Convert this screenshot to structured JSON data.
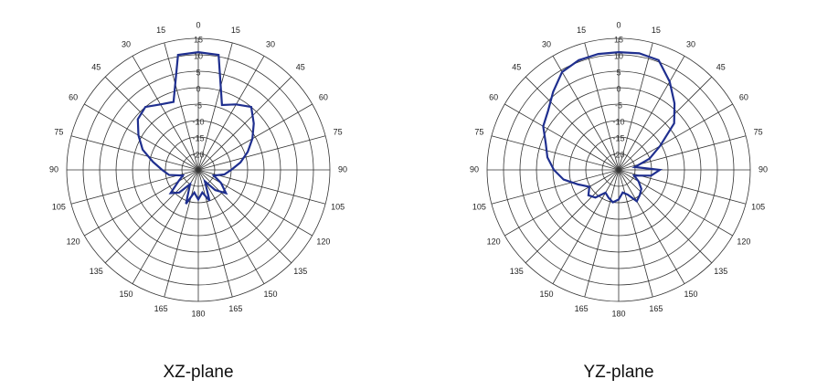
{
  "chart_data": [
    {
      "type": "polar",
      "title": "XZ-plane",
      "color": "#1f2f8f",
      "rlim": [
        -25,
        15
      ],
      "rticks": [
        -20,
        -15,
        -10,
        -5,
        0,
        5,
        10,
        15
      ],
      "thetaticks": [
        0,
        15,
        30,
        45,
        60,
        75,
        90,
        105,
        120,
        135,
        150,
        165,
        180,
        {
          "value": -15,
          "label": "15"
        },
        {
          "value": -30,
          "label": "30"
        },
        {
          "value": -45,
          "label": "45"
        },
        {
          "value": -60,
          "label": "60"
        },
        {
          "value": -75,
          "label": "75"
        },
        {
          "value": -90,
          "label": "90"
        },
        {
          "value": -105,
          "label": "105"
        },
        {
          "value": -120,
          "label": "120"
        },
        {
          "value": -135,
          "label": "135"
        },
        {
          "value": -150,
          "label": "150"
        },
        {
          "value": -165,
          "label": "165"
        }
      ],
      "theta": [
        -180,
        -170,
        -160,
        -150,
        -140,
        -130,
        -120,
        -110,
        -100,
        -90,
        -80,
        -70,
        -60,
        -50,
        -40,
        -30,
        -20,
        -10,
        0,
        10,
        20,
        30,
        40,
        50,
        60,
        70,
        80,
        90,
        100,
        110,
        120,
        130,
        140,
        150,
        160,
        170
      ],
      "values": [
        -16,
        -18,
        -14,
        -20,
        -16,
        -14,
        -18,
        -20,
        -16,
        -14,
        -11,
        -7,
        -4,
        -1,
        0,
        -2,
        -3,
        10.5,
        10.8,
        10.5,
        -4,
        -2,
        0,
        -3,
        -6,
        -9,
        -12,
        -15,
        -17,
        -20,
        -17,
        -14,
        -17,
        -21,
        -15,
        -18
      ]
    },
    {
      "type": "polar",
      "title": "YZ-plane",
      "color": "#1f2f8f",
      "rlim": [
        -25,
        15
      ],
      "rticks": [
        -20,
        -15,
        -10,
        -5,
        0,
        5,
        10,
        15
      ],
      "thetaticks": [
        0,
        15,
        30,
        45,
        60,
        75,
        90,
        105,
        120,
        135,
        150,
        165,
        180,
        {
          "value": -15,
          "label": "15"
        },
        {
          "value": -30,
          "label": "30"
        },
        {
          "value": -45,
          "label": "45"
        },
        {
          "value": -60,
          "label": "60"
        },
        {
          "value": -75,
          "label": "75"
        },
        {
          "value": -90,
          "label": "90"
        },
        {
          "value": -105,
          "label": "105"
        },
        {
          "value": -120,
          "label": "120"
        },
        {
          "value": -135,
          "label": "135"
        },
        {
          "value": -150,
          "label": "150"
        },
        {
          "value": -165,
          "label": "165"
        }
      ],
      "theta": [
        -180,
        -170,
        -160,
        -150,
        -140,
        -130,
        -120,
        -110,
        -100,
        -90,
        -80,
        -70,
        -60,
        -50,
        -40,
        -30,
        -20,
        -10,
        0,
        10,
        20,
        30,
        40,
        50,
        60,
        70,
        80,
        90,
        100,
        110,
        120,
        130,
        140,
        150,
        160,
        170
      ],
      "values": [
        -16,
        -15,
        -16,
        -17,
        -14,
        -13,
        -14.7,
        -12,
        -8,
        -5.3,
        -3,
        -1.4,
        1.5,
        3,
        6,
        9.4,
        10.5,
        10.8,
        10.8,
        11,
        10.5,
        6,
        1.4,
        -3,
        -10.5,
        -15,
        -20,
        -12.5,
        -15,
        -20,
        -18,
        -16,
        -15,
        -14,
        -17,
        -18
      ]
    }
  ]
}
